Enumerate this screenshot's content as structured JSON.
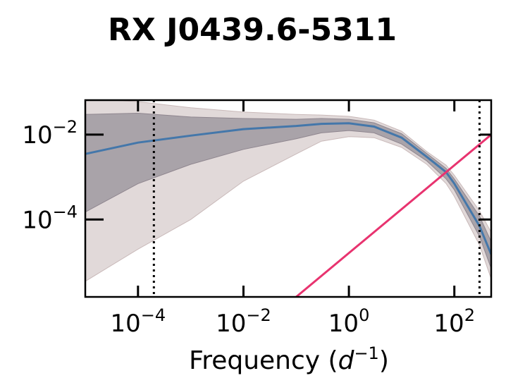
{
  "chart_data": {
    "type": "line",
    "title": "RX J0439.6-5311",
    "xlabel": "Frequency (d^-1)",
    "ylabel": "",
    "xscale": "log",
    "yscale": "log",
    "xlim": [
      1e-05,
      500
    ],
    "ylim": [
      1.5e-06,
      0.065
    ],
    "grid": false,
    "legend": "none",
    "x_ticks": [
      {
        "value": 0.0001,
        "base": "10",
        "exp": "−4"
      },
      {
        "value": 0.01,
        "base": "10",
        "exp": "−2"
      },
      {
        "value": 1,
        "base": "10",
        "exp": "0"
      },
      {
        "value": 100,
        "base": "10",
        "exp": "2"
      }
    ],
    "y_ticks": [
      {
        "value": 0.01,
        "base": "10",
        "exp": "−2"
      },
      {
        "value": 0.0001,
        "base": "10",
        "exp": "−4"
      }
    ],
    "x": [
      1e-05,
      0.0001,
      0.001,
      0.01,
      0.1,
      0.3,
      1,
      3,
      10,
      30,
      70,
      100,
      300,
      500
    ],
    "median": [
      0.0035,
      0.0065,
      0.0095,
      0.0135,
      0.016,
      0.018,
      0.0185,
      0.0155,
      0.0085,
      0.003,
      0.0013,
      0.0007,
      7e-05,
      1.5e-05
    ],
    "band_inner": {
      "lower": [
        0.00015,
        0.0007,
        0.002,
        0.0045,
        0.008,
        0.011,
        0.0125,
        0.011,
        0.006,
        0.0024,
        0.0009,
        0.0005,
        4e-05,
        7e-06
      ],
      "upper": [
        0.03,
        0.032,
        0.026,
        0.024,
        0.023,
        0.024,
        0.023,
        0.019,
        0.0105,
        0.0036,
        0.0016,
        0.0009,
        0.00012,
        3e-05
      ]
    },
    "band_outer": {
      "lower": [
        3.5e-06,
        2e-05,
        0.0001,
        0.0008,
        0.0035,
        0.007,
        0.009,
        0.0085,
        0.005,
        0.002,
        0.0007,
        0.00035,
        2.5e-05,
        4e-06
      ],
      "upper": [
        0.07,
        0.06,
        0.043,
        0.034,
        0.03,
        0.029,
        0.027,
        0.022,
        0.012,
        0.004,
        0.0019,
        0.0011,
        0.00016,
        5e-05
      ]
    },
    "power_law": {
      "points": [
        [
          0.1,
          1.5e-06
        ],
        [
          500,
          0.01
        ]
      ]
    },
    "vlines": [
      0.0002,
      300
    ],
    "colors": {
      "median": "#4477aa",
      "inner_band": "#a39ca3",
      "outer_band": "#dcd2d2",
      "power_law": "#e8336f",
      "vlines": "#000000"
    }
  }
}
